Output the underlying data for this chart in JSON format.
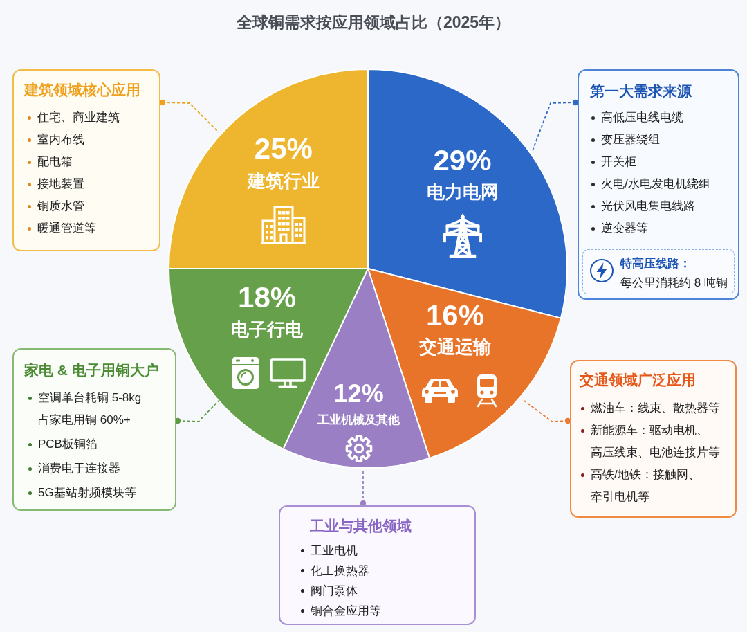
{
  "chart_data": {
    "type": "pie",
    "title": "全球铜需求按应用领域占比（2025年）",
    "categories": [
      "电力电网",
      "交通运输",
      "工业机械及其他",
      "电子行电",
      "建筑行业"
    ],
    "values": [
      29,
      16,
      12,
      18,
      25
    ],
    "value_labels": [
      "29%",
      "16%",
      "12%",
      "18%",
      "25%"
    ],
    "colors": [
      "#2b68c7",
      "#e8742a",
      "#9a7fc5",
      "#67a04b",
      "#eeb62f"
    ],
    "annotations": [
      "建筑领域核心应用",
      "住宅、商业建筑",
      "室内布线",
      "配电箱",
      "接地装置",
      "铜质水管",
      "暖通管道等",
      "第一大需求来源",
      "高低压电线电缆",
      "变压器绕组",
      "开关柜",
      "火电/水电发电机绕组",
      "光伏风电集电线路",
      "逆变器等",
      "特高压线路：",
      "每公里消耗约 8 吨铜",
      "家电 & 电子用铜大户",
      "空调单台耗铜 5-8kg 占家电用铜 60%+",
      "PCB板铜箔",
      "消费电于连接器",
      "5G基站射频模块等",
      "交通领域广泛应用",
      "燃油车：线束、散热器等",
      "新能源车：驱动电机、高压线束、电池连接片等",
      "高铁/地铁：接触网、牵引电机等",
      "工业与其他领域",
      "工业电机",
      "化工换热器",
      "阀门泵体",
      "铜合金应用等"
    ]
  }
}
